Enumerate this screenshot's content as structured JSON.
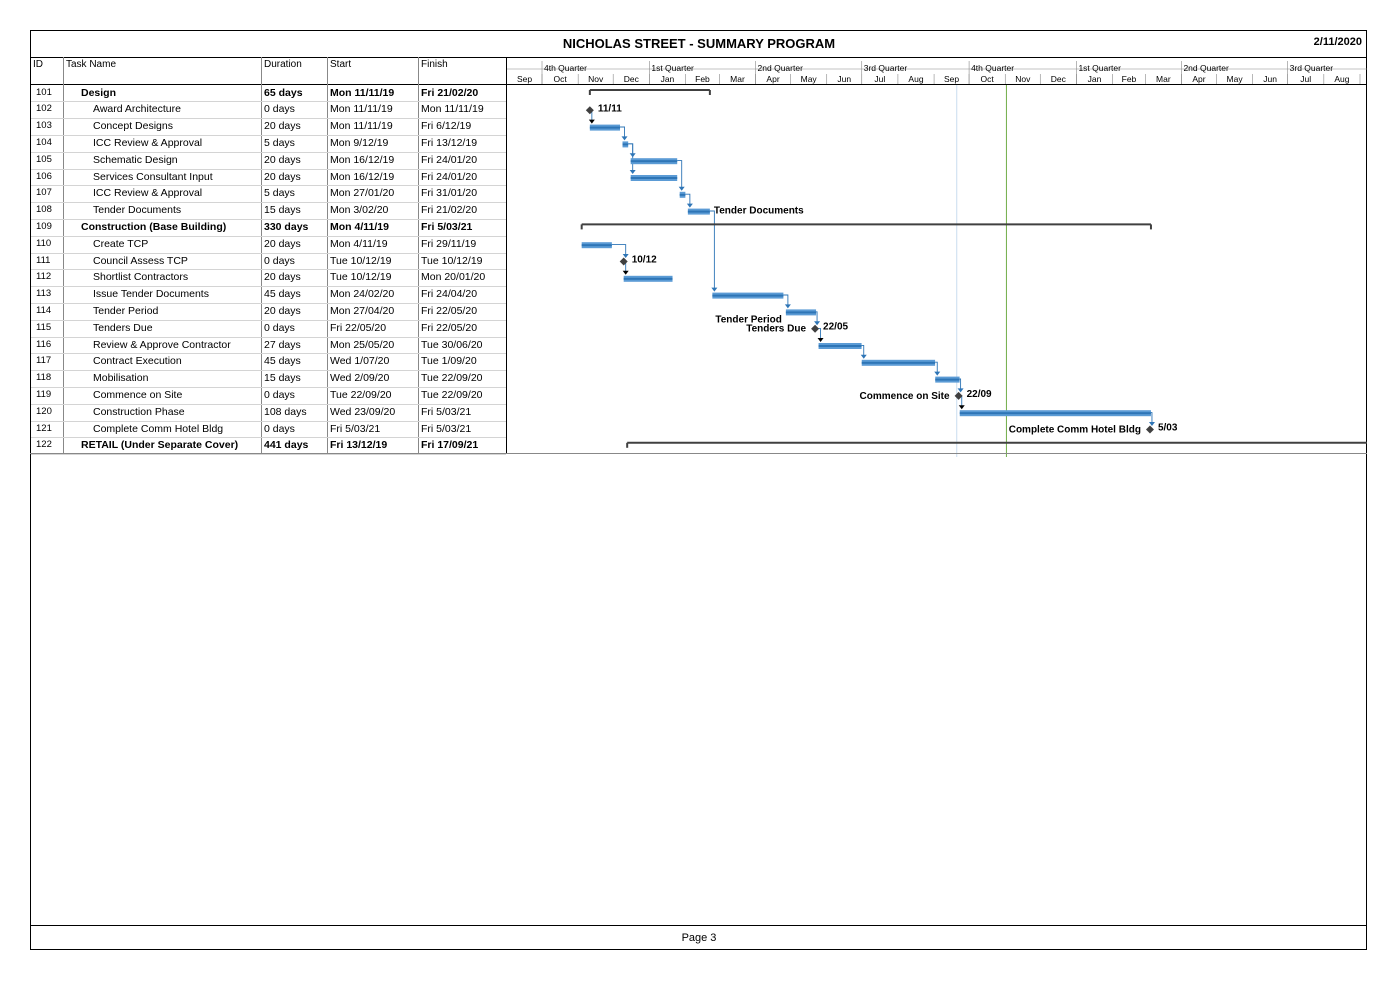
{
  "title": "NICHOLAS STREET - SUMMARY PROGRAM",
  "date": "2/11/2020",
  "footer": "Page 3",
  "columns": {
    "id": "ID",
    "name": "Task Name",
    "duration": "Duration",
    "start": "Start",
    "finish": "Finish"
  },
  "timescale": {
    "quarters": [
      "4th Quarter",
      "1st Quarter",
      "2nd Quarter",
      "3rd Quarter",
      "4th Quarter",
      "1st Quarter",
      "2nd Quarter",
      "3rd Quarter"
    ],
    "months": [
      "Sep",
      "Oct",
      "Nov",
      "Dec",
      "Jan",
      "Feb",
      "Mar",
      "Apr",
      "May",
      "Jun",
      "Jul",
      "Aug",
      "Sep",
      "Oct",
      "Nov",
      "Dec",
      "Jan",
      "Feb",
      "Mar",
      "Apr",
      "May",
      "Jun",
      "Jul",
      "Aug"
    ]
  },
  "colors": {
    "bar": "#5b9bd5",
    "bar_dark": "#2e75b6",
    "summary": "#404040",
    "status_line": "#70ad47",
    "link": "#2e75b6"
  },
  "chart_data": {
    "type": "gantt",
    "x_range": [
      "2019-09-01",
      "2021-08-31"
    ],
    "status_date": "2020-11-02",
    "tasks": [
      {
        "id": "101",
        "name": "Design",
        "duration": "65 days",
        "start": "Mon 11/11/19",
        "finish": "Fri 21/02/20",
        "s": "2019-11-11",
        "f": "2020-02-21",
        "summary": true,
        "level": 1
      },
      {
        "id": "102",
        "name": "Award Architecture",
        "duration": "0 days",
        "start": "Mon 11/11/19",
        "finish": "Mon 11/11/19",
        "s": "2019-11-11",
        "f": "2019-11-11",
        "milestone": true,
        "label": "11/11",
        "level": 2
      },
      {
        "id": "103",
        "name": "Concept Designs",
        "duration": "20 days",
        "start": "Mon 11/11/19",
        "finish": "Fri 6/12/19",
        "s": "2019-11-11",
        "f": "2019-12-06",
        "level": 2
      },
      {
        "id": "104",
        "name": "ICC Review & Approval",
        "duration": "5 days",
        "start": "Mon 9/12/19",
        "finish": "Fri 13/12/19",
        "s": "2019-12-09",
        "f": "2019-12-13",
        "level": 2
      },
      {
        "id": "105",
        "name": "Schematic Design",
        "duration": "20 days",
        "start": "Mon 16/12/19",
        "finish": "Fri 24/01/20",
        "s": "2019-12-16",
        "f": "2020-01-24",
        "level": 2
      },
      {
        "id": "106",
        "name": "Services Consultant Input",
        "duration": "20 days",
        "start": "Mon 16/12/19",
        "finish": "Fri 24/01/20",
        "s": "2019-12-16",
        "f": "2020-01-24",
        "level": 2
      },
      {
        "id": "107",
        "name": "ICC Review & Approval",
        "duration": "5 days",
        "start": "Mon 27/01/20",
        "finish": "Fri 31/01/20",
        "s": "2020-01-27",
        "f": "2020-01-31",
        "level": 2
      },
      {
        "id": "108",
        "name": "Tender Documents",
        "duration": "15 days",
        "start": "Mon 3/02/20",
        "finish": "Fri 21/02/20",
        "s": "2020-02-03",
        "f": "2020-02-21",
        "level": 2,
        "label": "Tender Documents",
        "label_side": "right"
      },
      {
        "id": "109",
        "name": "Construction (Base Building)",
        "duration": "330 days",
        "start": "Mon 4/11/19",
        "finish": "Fri 5/03/21",
        "s": "2019-11-04",
        "f": "2021-03-05",
        "summary": true,
        "level": 1
      },
      {
        "id": "110",
        "name": "Create TCP",
        "duration": "20 days",
        "start": "Mon 4/11/19",
        "finish": "Fri 29/11/19",
        "s": "2019-11-04",
        "f": "2019-11-29",
        "level": 2
      },
      {
        "id": "111",
        "name": "Council Assess TCP",
        "duration": "0 days",
        "start": "Tue 10/12/19",
        "finish": "Tue 10/12/19",
        "s": "2019-12-10",
        "f": "2019-12-10",
        "milestone": true,
        "label": "10/12",
        "level": 2
      },
      {
        "id": "112",
        "name": "Shortlist Contractors",
        "duration": "20 days",
        "start": "Tue 10/12/19",
        "finish": "Mon 20/01/20",
        "s": "2019-12-10",
        "f": "2020-01-20",
        "level": 2
      },
      {
        "id": "113",
        "name": "Issue Tender Documents",
        "duration": "45 days",
        "start": "Mon 24/02/20",
        "finish": "Fri 24/04/20",
        "s": "2020-02-24",
        "f": "2020-04-24",
        "level": 2
      },
      {
        "id": "114",
        "name": "Tender Period",
        "duration": "20 days",
        "start": "Mon 27/04/20",
        "finish": "Fri 22/05/20",
        "s": "2020-04-27",
        "f": "2020-05-22",
        "level": 2,
        "label": "Tender Period",
        "label_side": "left"
      },
      {
        "id": "115",
        "name": "Tenders Due",
        "duration": "0 days",
        "start": "Fri 22/05/20",
        "finish": "Fri 22/05/20",
        "s": "2020-05-22",
        "f": "2020-05-22",
        "milestone": true,
        "label": "22/05",
        "left_label": "Tenders Due",
        "level": 2
      },
      {
        "id": "116",
        "name": "Review & Approve Contractor",
        "duration": "27 days",
        "start": "Mon 25/05/20",
        "finish": "Tue 30/06/20",
        "s": "2020-05-25",
        "f": "2020-06-30",
        "level": 2
      },
      {
        "id": "117",
        "name": "Contract Execution",
        "duration": "45 days",
        "start": "Wed 1/07/20",
        "finish": "Tue 1/09/20",
        "s": "2020-07-01",
        "f": "2020-09-01",
        "level": 2
      },
      {
        "id": "118",
        "name": "Mobilisation",
        "duration": "15 days",
        "start": "Wed 2/09/20",
        "finish": "Tue 22/09/20",
        "s": "2020-09-02",
        "f": "2020-09-22",
        "level": 2
      },
      {
        "id": "119",
        "name": "Commence on Site",
        "duration": "0 days",
        "start": "Tue 22/09/20",
        "finish": "Tue 22/09/20",
        "s": "2020-09-22",
        "f": "2020-09-22",
        "milestone": true,
        "label": "22/09",
        "left_label": "Commence on Site",
        "level": 2
      },
      {
        "id": "120",
        "name": "Construction Phase",
        "duration": "108 days",
        "start": "Wed 23/09/20",
        "finish": "Fri 5/03/21",
        "s": "2020-09-23",
        "f": "2021-03-05",
        "level": 2
      },
      {
        "id": "121",
        "name": "Complete Comm Hotel Bldg",
        "duration": "0 days",
        "start": "Fri 5/03/21",
        "finish": "Fri 5/03/21",
        "s": "2021-03-05",
        "f": "2021-03-05",
        "milestone": true,
        "label": "5/03",
        "left_label": "Complete Comm Hotel Bldg",
        "level": 2
      },
      {
        "id": "122",
        "name": "RETAIL (Under Separate Cover)",
        "duration": "441 days",
        "start": "Fri 13/12/19",
        "finish": "Fri 17/09/21",
        "s": "2019-12-13",
        "f": "2021-09-17",
        "summary": true,
        "level": 1
      }
    ]
  }
}
